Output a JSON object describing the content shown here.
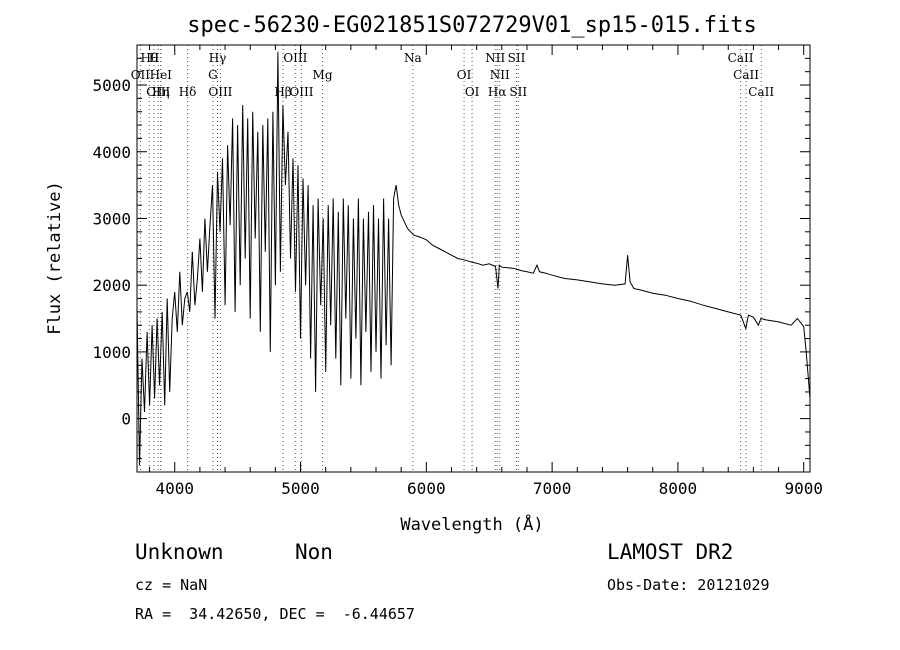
{
  "chart_data": {
    "type": "line",
    "title": "spec-56230-EG021851S072729V01_sp15-015.fits",
    "xlabel": "Wavelength (Å)",
    "ylabel": "Flux (relative)",
    "xlim": [
      3700,
      9050
    ],
    "ylim": [
      -800,
      5600
    ],
    "xticks": [
      4000,
      5000,
      6000,
      7000,
      8000,
      9000
    ],
    "yticks": [
      0,
      1000,
      2000,
      3000,
      4000,
      5000
    ],
    "grid": false,
    "series": [
      {
        "x": [
          3700,
          3720,
          3740,
          3760,
          3780,
          3800,
          3820,
          3840,
          3860,
          3880,
          3900,
          3920,
          3940,
          3960,
          3980,
          4000,
          4020,
          4040,
          4060,
          4080,
          4100,
          4120,
          4140,
          4160,
          4180,
          4200,
          4220,
          4240,
          4260,
          4280,
          4300,
          4320,
          4340,
          4360,
          4380,
          4400,
          4420,
          4440,
          4460,
          4480,
          4500,
          4520,
          4540,
          4560,
          4580,
          4600,
          4620,
          4640,
          4660,
          4680,
          4700,
          4720,
          4740,
          4760,
          4780,
          4800,
          4820,
          4840,
          4860,
          4880,
          4900,
          4920,
          4940,
          4960,
          4980,
          5000,
          5020,
          5040,
          5060,
          5080,
          5100,
          5120,
          5140,
          5160,
          5180,
          5200,
          5220,
          5240,
          5260,
          5280,
          5300,
          5320,
          5340,
          5360,
          5380,
          5400,
          5420,
          5440,
          5460,
          5480,
          5500,
          5520,
          5540,
          5560,
          5580,
          5600,
          5620,
          5640,
          5660,
          5680,
          5700,
          5720,
          5740,
          5760,
          5780,
          5800,
          5850,
          5900,
          5950,
          6000,
          6050,
          6100,
          6150,
          6200,
          6250,
          6300,
          6350,
          6400,
          6450,
          6500,
          6550,
          6570,
          6580,
          6600,
          6650,
          6700,
          6750,
          6800,
          6850,
          6880,
          6900,
          6950,
          7000,
          7100,
          7200,
          7300,
          7400,
          7500,
          7580,
          7600,
          7620,
          7650,
          7700,
          7800,
          7900,
          8000,
          8100,
          8200,
          8300,
          8400,
          8500,
          8540,
          8560,
          8600,
          8640,
          8660,
          8700,
          8800,
          8900,
          8950,
          9000,
          9020,
          9050
        ],
        "values": [
          1700,
          -700,
          900,
          100,
          1300,
          200,
          1400,
          300,
          1500,
          500,
          1600,
          200,
          1800,
          400,
          1500,
          1900,
          1300,
          2200,
          1400,
          1800,
          1900,
          1600,
          2500,
          1700,
          2100,
          2700,
          1900,
          3000,
          2200,
          2900,
          3500,
          1500,
          3700,
          2800,
          3900,
          1700,
          4100,
          2900,
          4500,
          1600,
          4400,
          2000,
          4700,
          2400,
          4500,
          1500,
          4600,
          2700,
          4300,
          1300,
          4400,
          2500,
          4500,
          1000,
          4600,
          2000,
          5500,
          2200,
          4700,
          3500,
          4300,
          2400,
          3900,
          1900,
          3800,
          1200,
          3600,
          2000,
          3500,
          900,
          3200,
          400,
          3300,
          1700,
          3000,
          700,
          3200,
          1400,
          3300,
          900,
          3100,
          500,
          3300,
          1500,
          3200,
          600,
          3000,
          1200,
          3300,
          500,
          3000,
          1300,
          3100,
          700,
          3200,
          1000,
          3000,
          600,
          3300,
          1100,
          3000,
          800,
          3300,
          3500,
          3200,
          3050,
          2850,
          2750,
          2720,
          2680,
          2600,
          2550,
          2500,
          2450,
          2400,
          2380,
          2350,
          2330,
          2300,
          2320,
          2280,
          1950,
          2300,
          2270,
          2260,
          2250,
          2220,
          2200,
          2180,
          2300,
          2200,
          2180,
          2150,
          2100,
          2080,
          2050,
          2020,
          2000,
          2020,
          2450,
          2050,
          1950,
          1930,
          1880,
          1850,
          1800,
          1760,
          1700,
          1650,
          1600,
          1550,
          1350,
          1550,
          1520,
          1400,
          1500,
          1480,
          1450,
          1400,
          1500,
          1380,
          1000,
          300
        ]
      }
    ],
    "lines": [
      {
        "label": "Hθ",
        "x": 3798,
        "row": 0
      },
      {
        "label": "H",
        "x": 3835,
        "row": 0
      },
      {
        "label": "Hγ",
        "x": 4340,
        "row": 0
      },
      {
        "label": "OIII",
        "x": 4959,
        "row": 0
      },
      {
        "label": "Na",
        "x": 5893,
        "row": 0
      },
      {
        "label": "NII",
        "x": 6548,
        "row": 0
      },
      {
        "label": "SII",
        "x": 6717,
        "row": 0
      },
      {
        "label": "CaII",
        "x": 8498,
        "row": 0
      },
      {
        "label": "OII",
        "x": 3727,
        "row": 1
      },
      {
        "label": "HeI",
        "x": 3889,
        "row": 1
      },
      {
        "label": "G",
        "x": 4304,
        "row": 1
      },
      {
        "label": "Hβ",
        "x": 4861,
        "row": 2
      },
      {
        "label": "Mg",
        "x": 5175,
        "row": 1
      },
      {
        "label": "OI",
        "x": 6300,
        "row": 1
      },
      {
        "label": "NII",
        "x": 6584,
        "row": 1
      },
      {
        "label": "CaII",
        "x": 8542,
        "row": 1
      },
      {
        "label": "OIII",
        "x": 3869,
        "row": 2
      },
      {
        "label": "Hη",
        "x": 3889,
        "row": 2
      },
      {
        "label": "Hδ",
        "x": 4102,
        "row": 2
      },
      {
        "label": "OIII",
        "x": 4363,
        "row": 2
      },
      {
        "label": "OIII",
        "x": 5007,
        "row": 2
      },
      {
        "label": "OI",
        "x": 6364,
        "row": 2
      },
      {
        "label": "Hα",
        "x": 6563,
        "row": 2
      },
      {
        "label": "SII",
        "x": 6731,
        "row": 2
      },
      {
        "label": "CaII",
        "x": 8662,
        "row": 2
      }
    ]
  },
  "info": {
    "class_label": "Unknown",
    "subclass_label": "Non",
    "cz": "cz = NaN",
    "coords": "RA =  34.42650, DEC =  -6.44657",
    "survey": "LAMOST DR2",
    "obs_date": "Obs-Date: 20121029"
  }
}
